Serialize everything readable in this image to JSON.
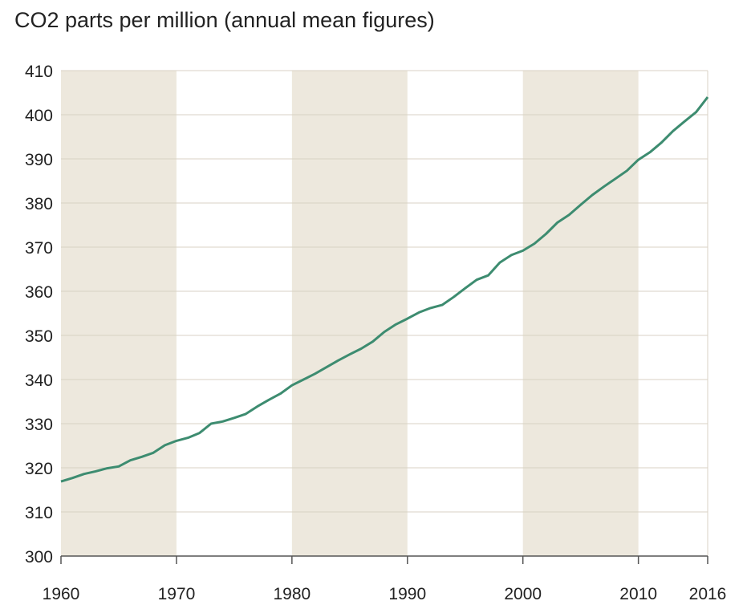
{
  "chart_data": {
    "type": "line",
    "title": "CO2 parts per million (annual mean figures)",
    "xlabel": "",
    "ylabel": "",
    "xlim": [
      1960,
      2016
    ],
    "ylim": [
      300,
      410
    ],
    "x_ticks": [
      "1960",
      "1970",
      "1980",
      "1990",
      "2000",
      "2010",
      "2016"
    ],
    "y_ticks": [
      "300",
      "310",
      "320",
      "330",
      "340",
      "350",
      "360",
      "370",
      "380",
      "390",
      "400",
      "410"
    ],
    "grid": true,
    "shaded_decades": [
      [
        1960,
        1970
      ],
      [
        1980,
        1990
      ],
      [
        2000,
        2010
      ]
    ],
    "colors": {
      "line": "#3d8c70",
      "band": "#ede8dd",
      "grid": "#d8d2c4",
      "axis": "#555555"
    },
    "series": [
      {
        "x": [
          1960,
          1961,
          1962,
          1963,
          1964,
          1965,
          1966,
          1967,
          1968,
          1969,
          1970,
          1971,
          1972,
          1973,
          1974,
          1975,
          1976,
          1977,
          1978,
          1979,
          1980,
          1981,
          1982,
          1983,
          1984,
          1985,
          1986,
          1987,
          1988,
          1989,
          1990,
          1991,
          1992,
          1993,
          1994,
          1995,
          1996,
          1997,
          1998,
          1999,
          2000,
          2001,
          2002,
          2003,
          2004,
          2005,
          2006,
          2007,
          2008,
          2009,
          2010,
          2011,
          2012,
          2013,
          2014,
          2015,
          2016
        ],
        "values": [
          316.9,
          317.7,
          318.6,
          319.2,
          319.9,
          320.3,
          321.7,
          322.5,
          323.4,
          325.1,
          326.1,
          326.8,
          327.9,
          330.0,
          330.5,
          331.3,
          332.2,
          333.9,
          335.4,
          336.8,
          338.7,
          340.0,
          341.3,
          342.8,
          344.3,
          345.7,
          347.0,
          348.6,
          350.8,
          352.5,
          353.8,
          355.2,
          356.2,
          356.9,
          358.7,
          360.7,
          362.6,
          363.6,
          366.5,
          368.2,
          369.2,
          370.8,
          373.0,
          375.6,
          377.3,
          379.6,
          381.8,
          383.7,
          385.5,
          387.3,
          389.8,
          391.5,
          393.7,
          396.3,
          398.5,
          400.6,
          404.0
        ]
      }
    ]
  }
}
